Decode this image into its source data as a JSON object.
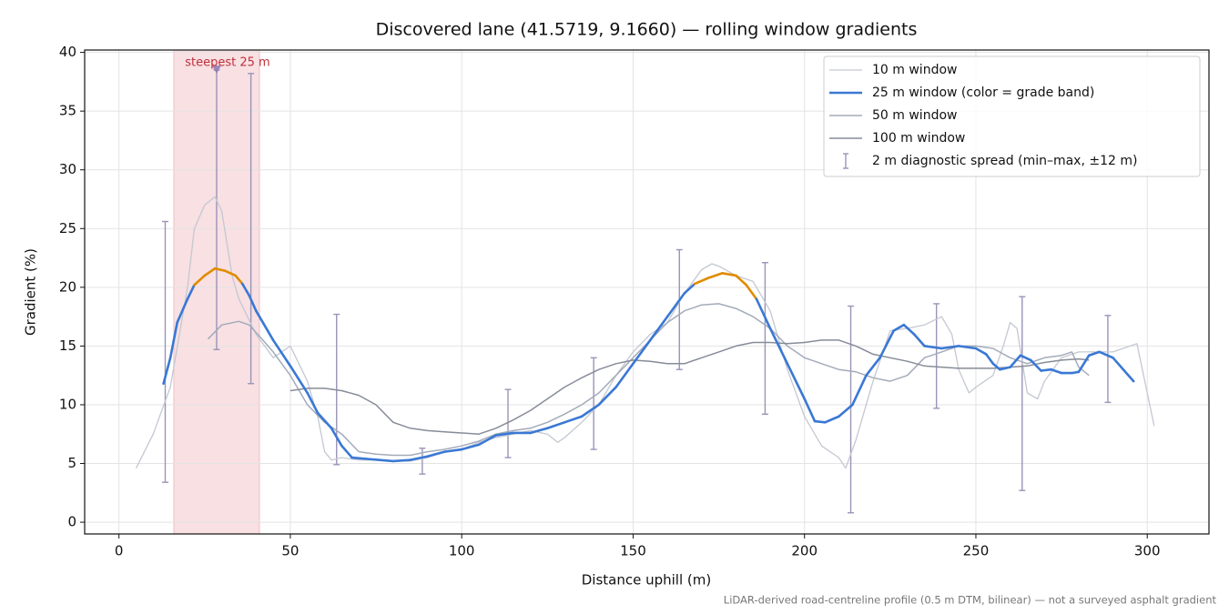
{
  "chart_data": {
    "type": "line",
    "title": "Discovered lane (41.5719, 9.1660) — rolling window gradients",
    "xlabel": "Distance uphill (m)",
    "ylabel": "Gradient (%)",
    "footnote": "LiDAR-derived road-centreline profile (0.5 m DTM, bilinear) — not a surveyed asphalt gradient",
    "xlim": [
      -10,
      318
    ],
    "ylim": [
      -1,
      40.2
    ],
    "xticks": [
      0,
      50,
      100,
      150,
      200,
      250,
      300
    ],
    "yticks": [
      0,
      5,
      10,
      15,
      20,
      25,
      30,
      35,
      40
    ],
    "grid": true,
    "legend": "upper right",
    "span": {
      "x": [
        16,
        41
      ],
      "color": "#e8a0a8"
    },
    "annotation": {
      "text": "steepest 25 m",
      "x": 28.5,
      "y": 38.5,
      "color": "#c0303a"
    },
    "series": [
      {
        "name": "10 m window",
        "color": "#c3c8d2",
        "x": [
          5,
          10,
          15,
          20,
          22,
          25,
          28,
          30,
          33,
          35,
          40,
          45,
          50,
          55,
          58,
          60,
          62,
          65,
          70,
          75,
          80,
          85,
          90,
          95,
          100,
          105,
          110,
          115,
          120,
          125,
          128,
          130,
          135,
          140,
          145,
          150,
          155,
          160,
          165,
          170,
          173,
          175,
          180,
          185,
          190,
          195,
          200,
          205,
          210,
          212,
          215,
          220,
          225,
          230,
          235,
          240,
          243,
          245,
          248,
          250,
          255,
          258,
          260,
          262,
          265,
          268,
          270,
          275,
          280,
          285,
          290,
          295,
          297,
          300,
          302
        ],
        "values": [
          4.6,
          7.5,
          11.5,
          20,
          25,
          27,
          27.7,
          26.5,
          21,
          19,
          16,
          14,
          15,
          12,
          9,
          6,
          5.3,
          5.5,
          5.3,
          5.3,
          5.2,
          5.2,
          5.5,
          6,
          6.2,
          6.8,
          7.2,
          7.5,
          7.8,
          7.5,
          6.8,
          7.2,
          8.5,
          10,
          12.5,
          14.5,
          16,
          17,
          19.5,
          21.5,
          22,
          21.8,
          21,
          20.5,
          18,
          13,
          9,
          6.5,
          5.5,
          4.6,
          7,
          12,
          16.3,
          16.5,
          16.8,
          17.5,
          16,
          13,
          11,
          11.5,
          12.5,
          15,
          17,
          16.5,
          11,
          10.5,
          12,
          14,
          14.5,
          14.5,
          14.5,
          15,
          15.2,
          11,
          8.2
        ]
      },
      {
        "name": "25 m window (color = grade band)",
        "color": "#3a78d4",
        "x": [
          13,
          15,
          17,
          20,
          22,
          25,
          28,
          31,
          34,
          36,
          38,
          40,
          42,
          45,
          50,
          55,
          58,
          62,
          65,
          68,
          72,
          76,
          80,
          85,
          90,
          95,
          100,
          105,
          110,
          115,
          120,
          125,
          130,
          135,
          140,
          145,
          150,
          155,
          160,
          165,
          168,
          172,
          176,
          180,
          183,
          186,
          190,
          195,
          200,
          203,
          206,
          210,
          214,
          218,
          222,
          226,
          229,
          232,
          235,
          240,
          245,
          250,
          253,
          255,
          257,
          260,
          263,
          266,
          269,
          272,
          275,
          278,
          280,
          283,
          286,
          290,
          293,
          296
        ],
        "values": [
          11.8,
          14,
          17,
          19,
          20.2,
          21,
          21.6,
          21.4,
          21,
          20.3,
          19.3,
          18,
          17,
          15.5,
          13.3,
          11,
          9.3,
          8,
          6.5,
          5.5,
          5.4,
          5.3,
          5.2,
          5.3,
          5.6,
          6,
          6.2,
          6.6,
          7.4,
          7.6,
          7.6,
          8,
          8.5,
          9,
          10,
          11.5,
          13.5,
          15.5,
          17.5,
          19.5,
          20.3,
          20.8,
          21.2,
          21,
          20.2,
          19,
          16.5,
          13.5,
          10.5,
          8.6,
          8.5,
          9,
          10,
          12.5,
          14,
          16.3,
          16.8,
          16,
          15,
          14.8,
          15,
          14.8,
          14.3,
          13.5,
          13,
          13.2,
          14.2,
          13.8,
          12.9,
          13,
          12.7,
          12.7,
          12.8,
          14.2,
          14.5,
          14,
          13,
          12
        ],
        "segment_colors": [
          "#3a78d4",
          "#3a78d4",
          "#3a78d4",
          "#3a78d4",
          "#e08c00",
          "#e08c00",
          "#e08c00",
          "#e08c00",
          "#e08c00",
          "#3a78d4",
          "#3a78d4",
          "#3a78d4",
          "#3a78d4",
          "#3a78d4",
          "#3a78d4",
          "#3a78d4",
          "#3a78d4",
          "#3a78d4",
          "#3a78d4",
          "#3a78d4",
          "#3a78d4",
          "#3a78d4",
          "#3a78d4",
          "#3a78d4",
          "#3a78d4",
          "#3a78d4",
          "#3a78d4",
          "#3a78d4",
          "#3a78d4",
          "#3a78d4",
          "#3a78d4",
          "#3a78d4",
          "#3a78d4",
          "#3a78d4",
          "#3a78d4",
          "#3a78d4",
          "#3a78d4",
          "#3a78d4",
          "#3a78d4",
          "#3a78d4",
          "#e08c00",
          "#e08c00",
          "#e08c00",
          "#e08c00",
          "#e08c00",
          "#3a78d4",
          "#3a78d4",
          "#3a78d4",
          "#3a78d4",
          "#3a78d4",
          "#3a78d4",
          "#3a78d4",
          "#3a78d4",
          "#3a78d4",
          "#3a78d4",
          "#3a78d4",
          "#3a78d4",
          "#3a78d4",
          "#3a78d4",
          "#3a78d4",
          "#3a78d4",
          "#3a78d4",
          "#3a78d4",
          "#3a78d4",
          "#3a78d4",
          "#3a78d4",
          "#3a78d4",
          "#3a78d4",
          "#3a78d4",
          "#3a78d4",
          "#3a78d4",
          "#3a78d4",
          "#3a78d4",
          "#3a78d4",
          "#3a78d4",
          "#3a78d4",
          "#3a78d4",
          "#3a78d4"
        ]
      },
      {
        "name": "50 m window",
        "color": "#a3abba",
        "x": [
          26,
          30,
          35,
          38,
          42,
          45,
          50,
          55,
          60,
          65,
          70,
          75,
          80,
          85,
          90,
          95,
          100,
          105,
          110,
          115,
          120,
          125,
          130,
          135,
          140,
          145,
          150,
          155,
          160,
          165,
          170,
          175,
          180,
          185,
          190,
          195,
          200,
          205,
          210,
          215,
          220,
          225,
          230,
          235,
          240,
          245,
          250,
          255,
          260,
          265,
          270,
          275,
          278,
          280,
          283
        ],
        "values": [
          15.6,
          16.8,
          17.1,
          16.8,
          15.5,
          14.5,
          12.5,
          10,
          8.5,
          7.5,
          6,
          5.8,
          5.7,
          5.7,
          6,
          6.2,
          6.5,
          6.9,
          7.5,
          7.8,
          8,
          8.5,
          9.2,
          10,
          11,
          12.5,
          14,
          15.5,
          17,
          18,
          18.5,
          18.6,
          18.2,
          17.5,
          16.5,
          15,
          14,
          13.5,
          13,
          12.8,
          12.3,
          12,
          12.5,
          14,
          14.5,
          15,
          15,
          14.8,
          14,
          13.5,
          14,
          14.2,
          14.5,
          13.2,
          12.5
        ]
      },
      {
        "name": "100 m window",
        "color": "#868c98",
        "x": [
          50,
          55,
          60,
          65,
          70,
          75,
          80,
          85,
          90,
          95,
          100,
          105,
          110,
          115,
          120,
          125,
          130,
          135,
          140,
          145,
          150,
          155,
          160,
          165,
          170,
          175,
          180,
          185,
          190,
          195,
          200,
          205,
          210,
          215,
          220,
          225,
          230,
          235,
          240,
          245,
          250,
          255,
          260,
          265,
          270,
          275,
          280,
          283
        ],
        "values": [
          11.2,
          11.4,
          11.4,
          11.2,
          10.8,
          10,
          8.5,
          8,
          7.8,
          7.7,
          7.6,
          7.5,
          8,
          8.7,
          9.5,
          10.5,
          11.5,
          12.3,
          13,
          13.5,
          13.8,
          13.7,
          13.5,
          13.5,
          14,
          14.5,
          15,
          15.3,
          15.3,
          15.2,
          15.3,
          15.5,
          15.5,
          15,
          14.3,
          14,
          13.7,
          13.3,
          13.2,
          13.1,
          13.1,
          13.1,
          13.2,
          13.3,
          13.6,
          13.8,
          13.9,
          13.8
        ]
      }
    ],
    "errorbars": {
      "name": "2 m diagnostic spread (min–max, ±12 m)",
      "color": "#9a94b8",
      "x": [
        13.5,
        28.5,
        38.5,
        63.5,
        88.5,
        113.5,
        138.5,
        163.5,
        188.5,
        213.5,
        238.5,
        263.5,
        288.5
      ],
      "low": [
        3.4,
        14.7,
        11.8,
        4.9,
        4.1,
        5.5,
        6.2,
        13,
        9.2,
        0.8,
        9.7,
        2.7,
        10.2
      ],
      "high": [
        25.6,
        38.5,
        38.2,
        17.7,
        6.3,
        11.3,
        14,
        23.2,
        22.1,
        18.4,
        18.6,
        19.2,
        17.6
      ]
    }
  }
}
